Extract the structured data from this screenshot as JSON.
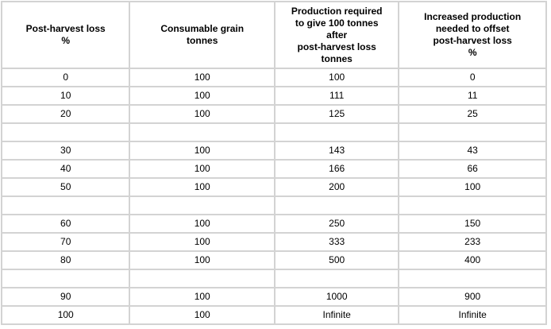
{
  "chart_data": {
    "type": "table",
    "columns": [
      "Post-harvest loss\n%",
      "Consumable grain\ntonnes",
      "Production required\nto give 100 tonnes\nafter\npost-harvest loss\ntonnes",
      "Increased production\nneeded to offset\npost-harvest loss\n%"
    ],
    "rows": [
      [
        "0",
        "100",
        "100",
        "0"
      ],
      [
        "10",
        "100",
        "111",
        "11"
      ],
      [
        "20",
        "100",
        "125",
        "25"
      ],
      [
        "",
        "",
        "",
        ""
      ],
      [
        "30",
        "100",
        "143",
        "43"
      ],
      [
        "40",
        "100",
        "166",
        "66"
      ],
      [
        "50",
        "100",
        "200",
        "100"
      ],
      [
        "",
        "",
        "",
        ""
      ],
      [
        "60",
        "100",
        "250",
        "150"
      ],
      [
        "70",
        "100",
        "333",
        "233"
      ],
      [
        "80",
        "100",
        "500",
        "400"
      ],
      [
        "",
        "",
        "",
        ""
      ],
      [
        "90",
        "100",
        "1000",
        "900"
      ],
      [
        "100",
        "100",
        "Infinite",
        "Infinite"
      ]
    ]
  },
  "colors": {
    "outer_border": "#a8a8a8",
    "grid_line": "#d3d3d3",
    "text": "#000000",
    "background": "#ffffff"
  }
}
